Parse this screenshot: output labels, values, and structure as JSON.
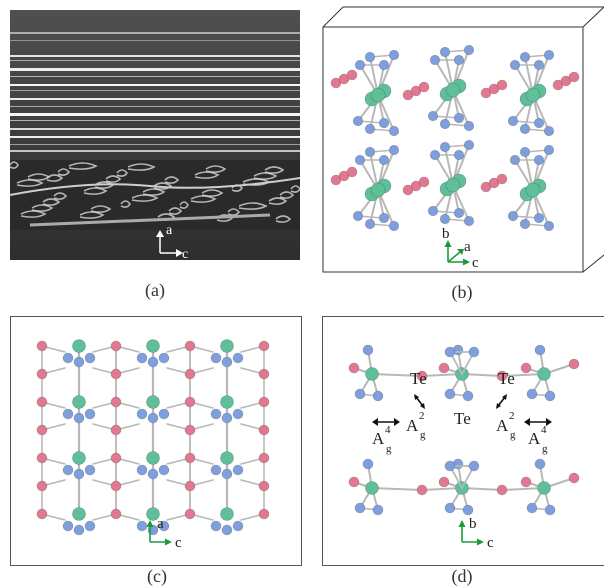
{
  "figure": {
    "captions": {
      "a": "(a)",
      "b": "(b)",
      "c": "(c)",
      "d": "(d)"
    }
  },
  "panel_a": {
    "axis_a": "a",
    "axis_c": "c"
  },
  "panel_b": {
    "axis_b": "b",
    "axis_a": "a",
    "axis_c": "c"
  },
  "panel_c": {
    "axis_a": "a",
    "axis_c": "c"
  },
  "panel_d": {
    "labels": {
      "te1": "Te",
      "te2": "Te",
      "te3": "Te"
    },
    "modes": {
      "a_letter": "A",
      "a2_sup": "2",
      "a4_sup": "4",
      "g_sub": "g"
    },
    "axis_b": "b",
    "axis_c": "c"
  },
  "colors": {
    "metal": "#5fbf99",
    "te_blue": "#7f9fdc",
    "te_pink": "#e0788f",
    "bond": "#b8b8b8",
    "axis_green": "#1a9a3a"
  }
}
